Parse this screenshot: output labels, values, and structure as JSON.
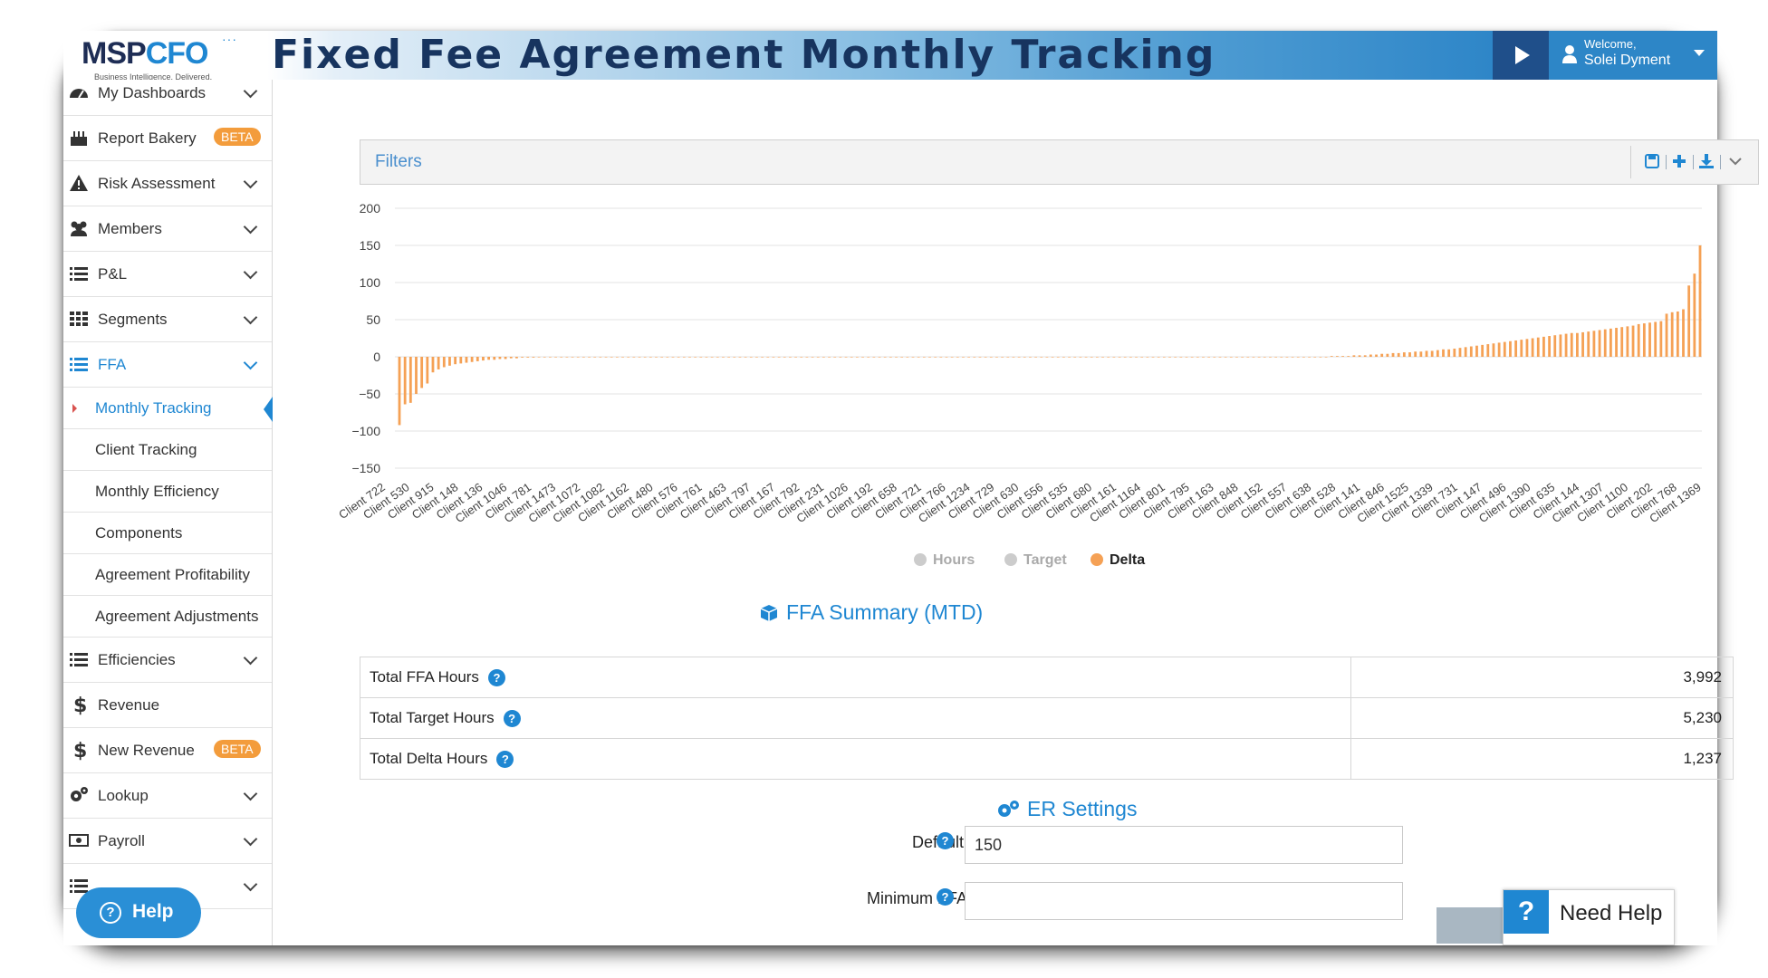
{
  "header": {
    "logo_main": "MSP",
    "logo_accent": "CFO",
    "logo_tagline": "Business Intelligence. Delivered.",
    "title": "Fixed Fee Agreement Monthly Tracking",
    "welcome": "Welcome,",
    "user_name": "Solei Dyment"
  },
  "sidebar": {
    "items": [
      {
        "label": "My Dashboards",
        "icon": "dashboard-icon",
        "chevron": true
      },
      {
        "label": "Report Bakery",
        "icon": "cake-icon",
        "badge": "BETA"
      },
      {
        "label": "Risk Assessment",
        "icon": "warning-icon",
        "chevron": true
      },
      {
        "label": "Members",
        "icon": "users-icon",
        "chevron": true
      },
      {
        "label": "P&L",
        "icon": "list-icon",
        "chevron": true
      },
      {
        "label": "Segments",
        "icon": "grid-icon",
        "chevron": true
      },
      {
        "label": "FFA",
        "icon": "list-icon",
        "chevron": true,
        "active": true
      },
      {
        "label": "Efficiencies",
        "icon": "list-icon",
        "chevron": true
      },
      {
        "label": "Revenue",
        "icon": "dollar-icon"
      },
      {
        "label": "New Revenue",
        "icon": "dollar-icon",
        "badge": "BETA"
      },
      {
        "label": "Lookup",
        "icon": "cogs-icon",
        "chevron": true
      },
      {
        "label": "Payroll",
        "icon": "money-icon",
        "chevron": true
      }
    ],
    "ffa_sub": [
      "Monthly Tracking",
      "Client Tracking",
      "Monthly Efficiency",
      "Components",
      "Agreement Profitability",
      "Agreement Adjustments"
    ],
    "help_label": "Help"
  },
  "filters": {
    "label": "Filters"
  },
  "chart_data": {
    "type": "bar",
    "ylim": [
      -150,
      200
    ],
    "yticks": [
      200,
      150,
      100,
      50,
      0,
      -50,
      -100,
      -150
    ],
    "legend": [
      "Hours",
      "Target",
      "Delta"
    ],
    "legend_active": "Delta",
    "legend_placement": "bottom",
    "grid": true,
    "bar_color": "#f5a155",
    "x_tick_labels": [
      "Client 722",
      "Client 530",
      "Client 915",
      "Client 148",
      "Client 136",
      "Client 1046",
      "Client 781",
      "Client 1473",
      "Client 1072",
      "Client 1082",
      "Client 1162",
      "Client 480",
      "Client 576",
      "Client 761",
      "Client 463",
      "Client 797",
      "Client 167",
      "Client 792",
      "Client 231",
      "Client 1026",
      "Client 192",
      "Client 658",
      "Client 721",
      "Client 766",
      "Client 1234",
      "Client 729",
      "Client 630",
      "Client 556",
      "Client 535",
      "Client 680",
      "Client 161",
      "Client 1164",
      "Client 801",
      "Client 795",
      "Client 163",
      "Client 848",
      "Client 152",
      "Client 557",
      "Client 638",
      "Client 528",
      "Client 141",
      "Client 846",
      "Client 1525",
      "Client 1339",
      "Client 731",
      "Client 147",
      "Client 496",
      "Client 1390",
      "Client 635",
      "Client 144",
      "Client 1307",
      "Client 1100",
      "Client 202",
      "Client 768",
      "Client 1369"
    ],
    "series": [
      {
        "name": "Delta",
        "values": [
          -92,
          -64,
          -62,
          -50,
          -42,
          -36,
          -21,
          -17,
          -14,
          -12,
          -10,
          -9,
          -8,
          -7,
          -6,
          -5,
          -4,
          -4,
          -3,
          -3,
          -2,
          -2,
          -1,
          -1,
          -1,
          0,
          0,
          0,
          0,
          0,
          0,
          0,
          0,
          0,
          0,
          0,
          0,
          0,
          0,
          0,
          0,
          0,
          0,
          0,
          0,
          0,
          0,
          0,
          0,
          0,
          0,
          0,
          0,
          0,
          0,
          0,
          0,
          0,
          0,
          0,
          0,
          0,
          0,
          0,
          0,
          0,
          0,
          0,
          0,
          0,
          0,
          0,
          0,
          0,
          0,
          0,
          0,
          0,
          0,
          0,
          0,
          0,
          0,
          0,
          0,
          0,
          0,
          0,
          0,
          0,
          0,
          0,
          0,
          0,
          0,
          0,
          0,
          0,
          0,
          0,
          0,
          0,
          0,
          0,
          0,
          0,
          0,
          0,
          0,
          0,
          0,
          0,
          0,
          0,
          0,
          0,
          0,
          0,
          0,
          0,
          0,
          0,
          0,
          0,
          0,
          0,
          0,
          0,
          0,
          0,
          0,
          0,
          0,
          0,
          0,
          0,
          0,
          0,
          0,
          0,
          0,
          0,
          0,
          0,
          0,
          0,
          0,
          0,
          0,
          0,
          0,
          0,
          0,
          0,
          0,
          0,
          0,
          0,
          0,
          0,
          0,
          0,
          0,
          0,
          0,
          0,
          0,
          1,
          1,
          1,
          1,
          2,
          2,
          2,
          3,
          3,
          4,
          4,
          5,
          5,
          6,
          6,
          7,
          7,
          8,
          8,
          9,
          10,
          10,
          11,
          12,
          13,
          14,
          15,
          16,
          17,
          18,
          19,
          20,
          21,
          22,
          23,
          24,
          25,
          26,
          27,
          28,
          29,
          30,
          31,
          32,
          32,
          33,
          34,
          35,
          36,
          37,
          38,
          39,
          40,
          41,
          42,
          44,
          45,
          46,
          47,
          48,
          58,
          60,
          61,
          64,
          96,
          112,
          150
        ]
      }
    ]
  },
  "summary": {
    "title": "FFA Summary (MTD)",
    "rows": [
      {
        "label": "Total FFA Hours",
        "value": "3,992"
      },
      {
        "label": "Total Target Hours",
        "value": "5,230"
      },
      {
        "label": "Total Delta Hours",
        "value": "1,237"
      }
    ]
  },
  "er_settings": {
    "title": "ER Settings",
    "default_er_label": "Default ER:",
    "default_er_value": "150",
    "minimum_ffa_label": "Minimum FFA ($):",
    "minimum_ffa_value": ""
  },
  "need_help": {
    "label": "Need Help"
  }
}
